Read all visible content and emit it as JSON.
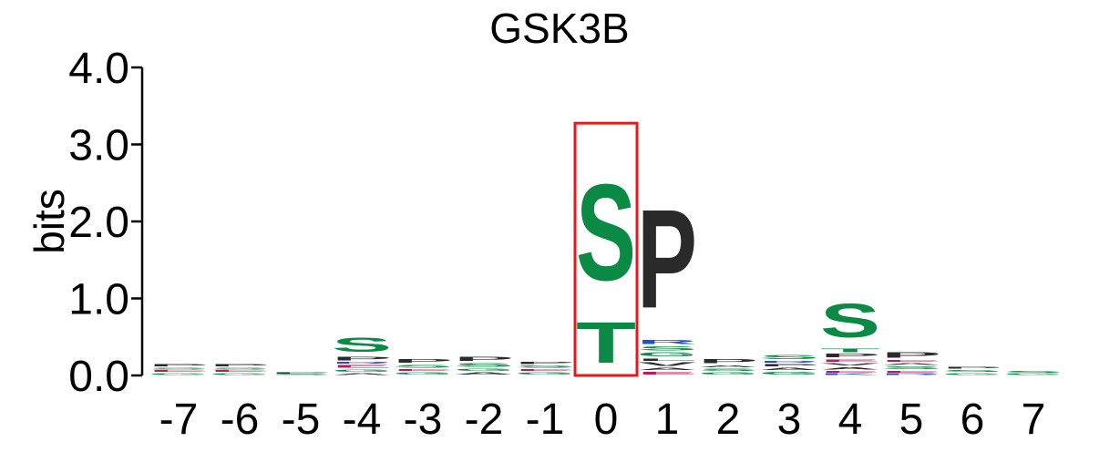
{
  "chart_data": {
    "type": "sequence-logo",
    "title": "GSK3B",
    "ylabel": "bits",
    "ylim": [
      0,
      4
    ],
    "yticks": [
      "0.0",
      "1.0",
      "2.0",
      "3.0",
      "4.0"
    ],
    "positions": [
      "-7",
      "-6",
      "-5",
      "-4",
      "-3",
      "-2",
      "-1",
      "0",
      "1",
      "2",
      "3",
      "4",
      "5",
      "6",
      "7"
    ],
    "highlight_position": "0",
    "colors": {
      "S": "#0a8a45",
      "T": "#0a8a45",
      "G": "#0a8a45",
      "P": "#2a2a2a",
      "L": "#2a2a2a",
      "A": "#2a2a2a",
      "V": "#2a2a2a",
      "R": "#1f4fd0",
      "K": "#1f4fd0",
      "E": "#c2185b",
      "D": "#c2185b",
      "highlight": "#e31a1c"
    },
    "stacks": [
      {
        "position": "-7",
        "letters": [
          {
            "aa": "G",
            "h": 0.04
          },
          {
            "aa": "E",
            "h": 0.03
          },
          {
            "aa": "S",
            "h": 0.04
          },
          {
            "aa": "P",
            "h": 0.05
          }
        ]
      },
      {
        "position": "-6",
        "letters": [
          {
            "aa": "G",
            "h": 0.04
          },
          {
            "aa": "E",
            "h": 0.03
          },
          {
            "aa": "S",
            "h": 0.04
          },
          {
            "aa": "P",
            "h": 0.05
          }
        ]
      },
      {
        "position": "-5",
        "letters": [
          {
            "aa": "S",
            "h": 0.02
          },
          {
            "aa": "P",
            "h": 0.02
          }
        ]
      },
      {
        "position": "-4",
        "letters": [
          {
            "aa": "A",
            "h": 0.04
          },
          {
            "aa": "G",
            "h": 0.05
          },
          {
            "aa": "E",
            "h": 0.06
          },
          {
            "aa": "R",
            "h": 0.03
          },
          {
            "aa": "P",
            "h": 0.07
          },
          {
            "aa": "S",
            "h": 0.3
          }
        ]
      },
      {
        "position": "-3",
        "letters": [
          {
            "aa": "G",
            "h": 0.05
          },
          {
            "aa": "E",
            "h": 0.04
          },
          {
            "aa": "S",
            "h": 0.06
          },
          {
            "aa": "P",
            "h": 0.07
          }
        ]
      },
      {
        "position": "-2",
        "letters": [
          {
            "aa": "A",
            "h": 0.05
          },
          {
            "aa": "G",
            "h": 0.05
          },
          {
            "aa": "S",
            "h": 0.07
          },
          {
            "aa": "P",
            "h": 0.09
          }
        ]
      },
      {
        "position": "-1",
        "letters": [
          {
            "aa": "G",
            "h": 0.05
          },
          {
            "aa": "E",
            "h": 0.04
          },
          {
            "aa": "S",
            "h": 0.05
          },
          {
            "aa": "P",
            "h": 0.05
          }
        ]
      },
      {
        "position": "0",
        "letters": [
          {
            "aa": "T",
            "h": 0.85
          },
          {
            "aa": "S",
            "h": 2.0
          }
        ]
      },
      {
        "position": "1",
        "letters": [
          {
            "aa": "E",
            "h": 0.06
          },
          {
            "aa": "A",
            "h": 0.05
          },
          {
            "aa": "V",
            "h": 0.07
          },
          {
            "aa": "L",
            "h": 0.05
          },
          {
            "aa": "G",
            "h": 0.08
          },
          {
            "aa": "S",
            "h": 0.08
          },
          {
            "aa": "R",
            "h": 0.09
          },
          {
            "aa": "P",
            "h": 2.05
          }
        ]
      },
      {
        "position": "2",
        "letters": [
          {
            "aa": "G",
            "h": 0.05
          },
          {
            "aa": "S",
            "h": 0.05
          },
          {
            "aa": "A",
            "h": 0.04
          },
          {
            "aa": "P",
            "h": 0.09
          }
        ]
      },
      {
        "position": "3",
        "letters": [
          {
            "aa": "G",
            "h": 0.06
          },
          {
            "aa": "A",
            "h": 0.05
          },
          {
            "aa": "P",
            "h": 0.05
          },
          {
            "aa": "R",
            "h": 0.04
          },
          {
            "aa": "S",
            "h": 0.08
          }
        ]
      },
      {
        "position": "4",
        "letters": [
          {
            "aa": "K",
            "h": 0.03
          },
          {
            "aa": "E",
            "h": 0.04
          },
          {
            "aa": "A",
            "h": 0.05
          },
          {
            "aa": "V",
            "h": 0.05
          },
          {
            "aa": "E",
            "h": 0.05
          },
          {
            "aa": "P",
            "h": 0.07
          },
          {
            "aa": "T",
            "h": 0.07
          },
          {
            "aa": "S",
            "h": 0.7
          }
        ]
      },
      {
        "position": "5",
        "letters": [
          {
            "aa": "R",
            "h": 0.03
          },
          {
            "aa": "E",
            "h": 0.04
          },
          {
            "aa": "S",
            "h": 0.06
          },
          {
            "aa": "A",
            "h": 0.04
          },
          {
            "aa": "E",
            "h": 0.04
          },
          {
            "aa": "P",
            "h": 0.11
          }
        ]
      },
      {
        "position": "6",
        "letters": [
          {
            "aa": "G",
            "h": 0.04
          },
          {
            "aa": "S",
            "h": 0.04
          },
          {
            "aa": "P",
            "h": 0.04
          }
        ]
      },
      {
        "position": "7",
        "letters": [
          {
            "aa": "G",
            "h": 0.03
          },
          {
            "aa": "S",
            "h": 0.04
          }
        ]
      }
    ]
  }
}
